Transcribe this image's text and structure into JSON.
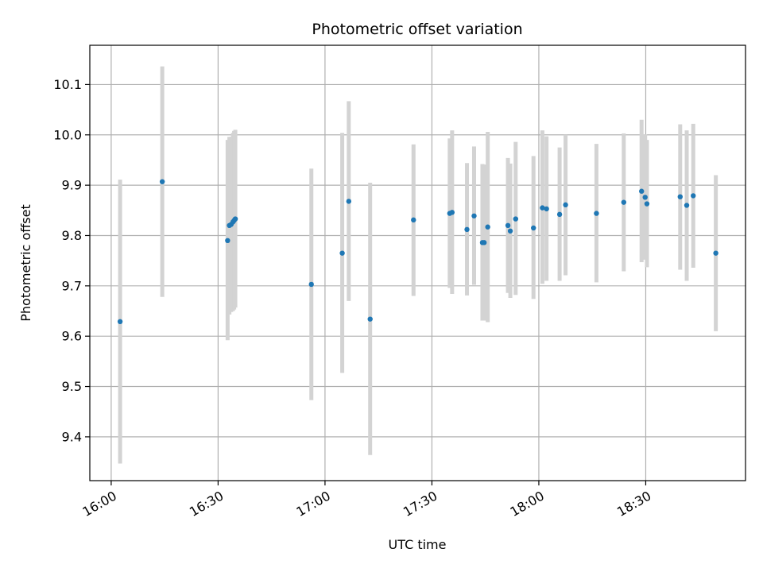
{
  "chart_data": {
    "type": "scatter",
    "title": "Photometric offset variation",
    "xlabel": "UTC time",
    "ylabel": "Photometric offset",
    "x_ticks": [
      "16:00",
      "16:30",
      "17:00",
      "17:30",
      "18:00",
      "18:30"
    ],
    "y_ticks": [
      "9.4",
      "9.5",
      "9.6",
      "9.7",
      "9.8",
      "9.9",
      "10.0",
      "10.1"
    ],
    "xlim": [
      "15:54",
      "18:58"
    ],
    "ylim": [
      9.313,
      10.178
    ],
    "grid": true,
    "colors": {
      "points": "#1f77b4",
      "errorbars": "#d3d3d3",
      "grid": "#b0b0b0"
    },
    "points": [
      {
        "time": "16:02:30",
        "y": 9.629,
        "ylow": 9.347,
        "yhigh": 9.911
      },
      {
        "time": "16:14:20",
        "y": 9.907,
        "ylow": 9.678,
        "yhigh": 10.136
      },
      {
        "time": "16:32:40",
        "y": 9.79,
        "ylow": 9.592,
        "yhigh": 9.99
      },
      {
        "time": "16:33:10",
        "y": 9.82,
        "ylow": 9.643,
        "yhigh": 9.996
      },
      {
        "time": "16:33:40",
        "y": 9.822,
        "ylow": 9.648,
        "yhigh": 9.996
      },
      {
        "time": "16:34:10",
        "y": 9.827,
        "ylow": 9.65,
        "yhigh": 10.004
      },
      {
        "time": "16:34:30",
        "y": 9.83,
        "ylow": 9.653,
        "yhigh": 10.008
      },
      {
        "time": "16:34:50",
        "y": 9.833,
        "ylow": 9.657,
        "yhigh": 10.01
      },
      {
        "time": "16:56:10",
        "y": 9.703,
        "ylow": 9.473,
        "yhigh": 9.933
      },
      {
        "time": "17:04:50",
        "y": 9.765,
        "ylow": 9.527,
        "yhigh": 10.004
      },
      {
        "time": "17:06:40",
        "y": 9.868,
        "ylow": 9.67,
        "yhigh": 10.067
      },
      {
        "time": "17:12:40",
        "y": 9.634,
        "ylow": 9.364,
        "yhigh": 9.905
      },
      {
        "time": "17:24:50",
        "y": 9.831,
        "ylow": 9.68,
        "yhigh": 9.981
      },
      {
        "time": "17:35:00",
        "y": 9.844,
        "ylow": 9.696,
        "yhigh": 9.993
      },
      {
        "time": "17:35:40",
        "y": 9.846,
        "ylow": 9.684,
        "yhigh": 10.009
      },
      {
        "time": "17:39:50",
        "y": 9.812,
        "ylow": 9.681,
        "yhigh": 9.944
      },
      {
        "time": "17:41:50",
        "y": 9.839,
        "ylow": 9.702,
        "yhigh": 9.977
      },
      {
        "time": "17:44:10",
        "y": 9.786,
        "ylow": 9.631,
        "yhigh": 9.942
      },
      {
        "time": "17:44:40",
        "y": 9.786,
        "ylow": 9.631,
        "yhigh": 9.941
      },
      {
        "time": "17:45:40",
        "y": 9.817,
        "ylow": 9.628,
        "yhigh": 10.006
      },
      {
        "time": "17:51:20",
        "y": 9.82,
        "ylow": 9.686,
        "yhigh": 9.954
      },
      {
        "time": "17:52:00",
        "y": 9.809,
        "ylow": 9.676,
        "yhigh": 9.943
      },
      {
        "time": "17:53:30",
        "y": 9.833,
        "ylow": 9.682,
        "yhigh": 9.986
      },
      {
        "time": "17:58:30",
        "y": 9.815,
        "ylow": 9.674,
        "yhigh": 9.958
      },
      {
        "time": "18:01:00",
        "y": 9.855,
        "ylow": 9.704,
        "yhigh": 10.009
      },
      {
        "time": "18:02:10",
        "y": 9.853,
        "ylow": 9.71,
        "yhigh": 9.997
      },
      {
        "time": "18:05:50",
        "y": 9.842,
        "ylow": 9.71,
        "yhigh": 9.975
      },
      {
        "time": "18:07:30",
        "y": 9.861,
        "ylow": 9.721,
        "yhigh": 10.0
      },
      {
        "time": "18:16:10",
        "y": 9.844,
        "ylow": 9.707,
        "yhigh": 9.982
      },
      {
        "time": "18:23:50",
        "y": 9.866,
        "ylow": 9.729,
        "yhigh": 10.003
      },
      {
        "time": "18:28:50",
        "y": 9.888,
        "ylow": 9.747,
        "yhigh": 10.03
      },
      {
        "time": "18:29:50",
        "y": 9.876,
        "ylow": 9.752,
        "yhigh": 10.001
      },
      {
        "time": "18:30:20",
        "y": 9.863,
        "ylow": 9.737,
        "yhigh": 9.99
      },
      {
        "time": "18:39:40",
        "y": 9.877,
        "ylow": 9.732,
        "yhigh": 10.021
      },
      {
        "time": "18:41:30",
        "y": 9.86,
        "ylow": 9.71,
        "yhigh": 10.009
      },
      {
        "time": "18:43:20",
        "y": 9.879,
        "ylow": 9.736,
        "yhigh": 10.022
      },
      {
        "time": "18:49:40",
        "y": 9.765,
        "ylow": 9.61,
        "yhigh": 9.92
      }
    ]
  }
}
